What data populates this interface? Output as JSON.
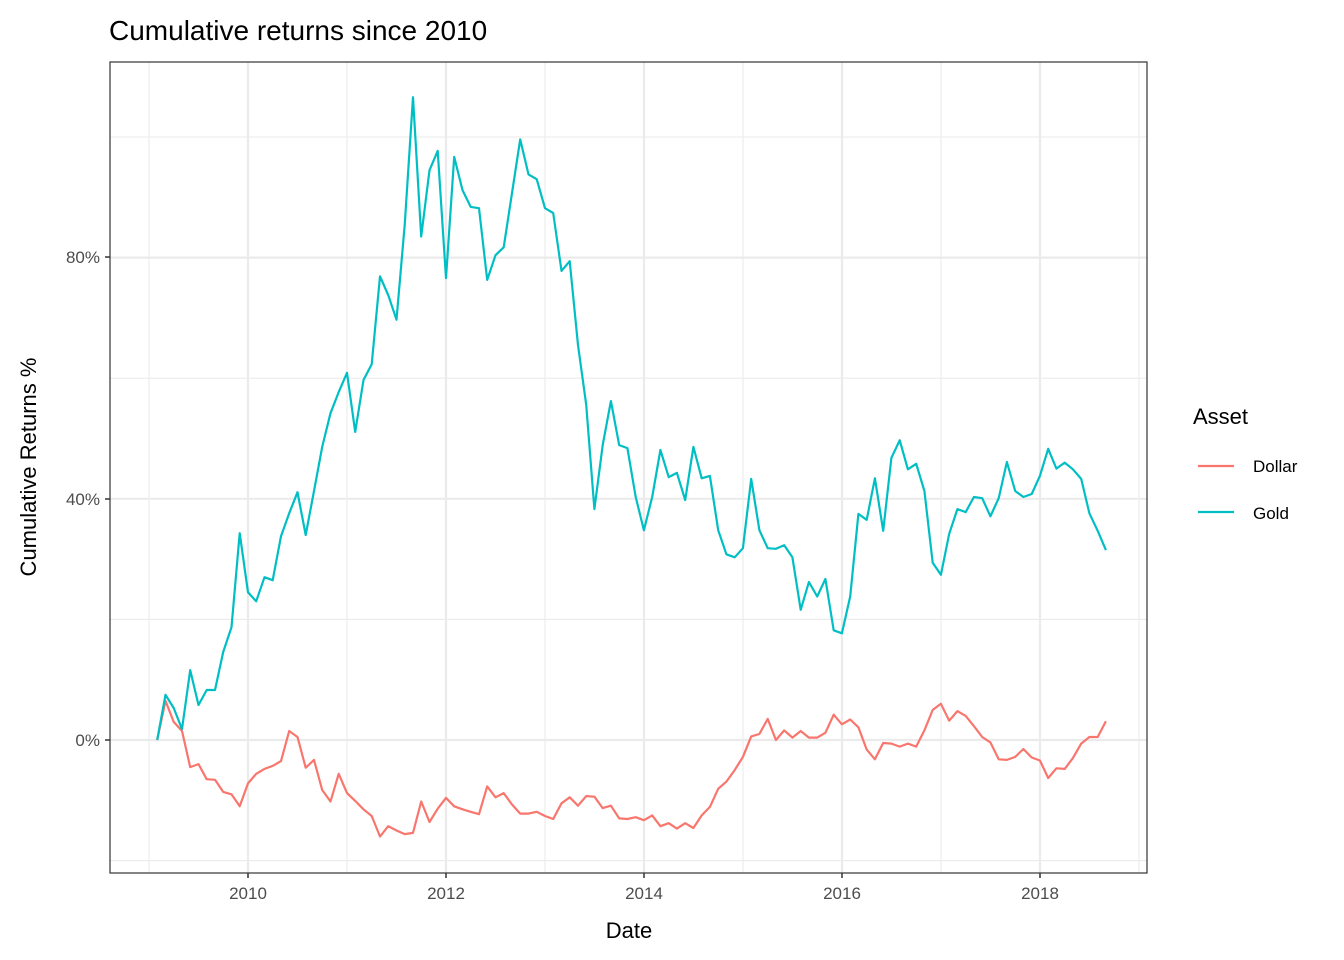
{
  "chart_data": {
    "type": "line",
    "title": "Cumulative returns since 2010",
    "xlabel": "Date",
    "ylabel": "Cumulative Returns %",
    "x_ticks": [
      "2010",
      "2012",
      "2014",
      "2016",
      "2018"
    ],
    "y_ticks": [
      "0%",
      "40%",
      "80%"
    ],
    "xlim": [
      2008.6,
      2019.1
    ],
    "ylim": [
      -22,
      107
    ],
    "grid": true,
    "legend": {
      "title": "Asset",
      "position": "right",
      "entries": [
        "Dollar",
        "Gold"
      ]
    },
    "x_start": 2009.083,
    "x_step_years": 0.08333,
    "series": [
      {
        "name": "Dollar",
        "color": "#F8766D",
        "values": [
          0,
          6.5,
          3,
          1.5,
          -4.5,
          -4,
          -6.5,
          -6.6,
          -8.6,
          -9,
          -11,
          -7.2,
          -5.6,
          -4.8,
          -4.3,
          -3.5,
          1.5,
          0.5,
          -4.6,
          -3.3,
          -8.3,
          -10.2,
          -5.6,
          -8.8,
          -10.1,
          -11.5,
          -12.6,
          -16,
          -14.3,
          -15,
          -15.6,
          -15.4,
          -10.2,
          -13.6,
          -11.4,
          -9.6,
          -11,
          -11.5,
          -11.9,
          -12.3,
          -7.7,
          -9.5,
          -8.8,
          -10.7,
          -12.2,
          -12.2,
          -11.9,
          -12.6,
          -13.1,
          -10.5,
          -9.5,
          -10.9,
          -9.3,
          -9.4,
          -11.3,
          -10.9,
          -13,
          -13.1,
          -12.8,
          -13.3,
          -12.5,
          -14.3,
          -13.8,
          -14.7,
          -13.8,
          -14.6,
          -12.5,
          -11.1,
          -8.1,
          -6.9,
          -5,
          -2.8,
          0.6,
          1,
          3.5,
          0,
          1.6,
          0.4,
          1.5,
          0.4,
          0.4,
          1.2,
          4.2,
          2.6,
          3.4,
          2.1,
          -1.6,
          -3.2,
          -0.5,
          -0.6,
          -1.1,
          -0.6,
          -1.1,
          1.6,
          5,
          6,
          3.2,
          4.8,
          4,
          2.3,
          0.5,
          -0.4,
          -3.2,
          -3.3,
          -2.8,
          -1.5,
          -2.9,
          -3.4,
          -6.3,
          -4.7,
          -4.8,
          -3,
          -0.6,
          0.5,
          0.5,
          3.1
        ]
      },
      {
        "name": "Gold",
        "color": "#00BFC4",
        "values": [
          0,
          7.5,
          5.3,
          1.8,
          11.6,
          5.8,
          8.3,
          8.3,
          14.6,
          18.7,
          34.3,
          24.5,
          23,
          27,
          26.5,
          33.8,
          37.6,
          41.1,
          34,
          41.3,
          48.6,
          54.2,
          57.7,
          60.9,
          51.1,
          59.7,
          62.3,
          76.9,
          73.8,
          69.7,
          85.4,
          106.6,
          83.5,
          94.5,
          97.7,
          76.6,
          96.7,
          91.2,
          88.4,
          88.2,
          76.3,
          80.4,
          81.7,
          90.7,
          99.6,
          93.8,
          93,
          88.2,
          87.4,
          77.8,
          79.4,
          65.5,
          55.6,
          38.3,
          48.9,
          56.2,
          48.9,
          48.4,
          40.3,
          34.8,
          40.3,
          48.1,
          43.6,
          44.3,
          39.8,
          48.6,
          43.4,
          43.8,
          34.8,
          30.8,
          30.3,
          31.8,
          43.3,
          34.8,
          31.8,
          31.7,
          32.3,
          30.3,
          21.6,
          26.2,
          23.8,
          26.7,
          18.2,
          17.7,
          23.8,
          37.5,
          36.5,
          43.4,
          34.7,
          46.8,
          49.7,
          44.9,
          45.8,
          41.3,
          29.4,
          27.4,
          34.2,
          38.3,
          37.8,
          40.3,
          40.1,
          37.1,
          40.1,
          46.1,
          41.3,
          40.3,
          40.8,
          43.8,
          48.3,
          45,
          46,
          44.9,
          43.3,
          37.6,
          34.7,
          31.5
        ]
      }
    ]
  },
  "ui": {
    "title": "Cumulative returns since 2010",
    "xlabel": "Date",
    "ylabel": "Cumulative Returns %",
    "legend_title": "Asset",
    "legend_dollar": "Dollar",
    "legend_gold": "Gold",
    "xtick_2010": "2010",
    "xtick_2012": "2012",
    "xtick_2014": "2014",
    "xtick_2016": "2016",
    "xtick_2018": "2018",
    "ytick_0": "0%",
    "ytick_40": "40%",
    "ytick_80": "80%"
  }
}
